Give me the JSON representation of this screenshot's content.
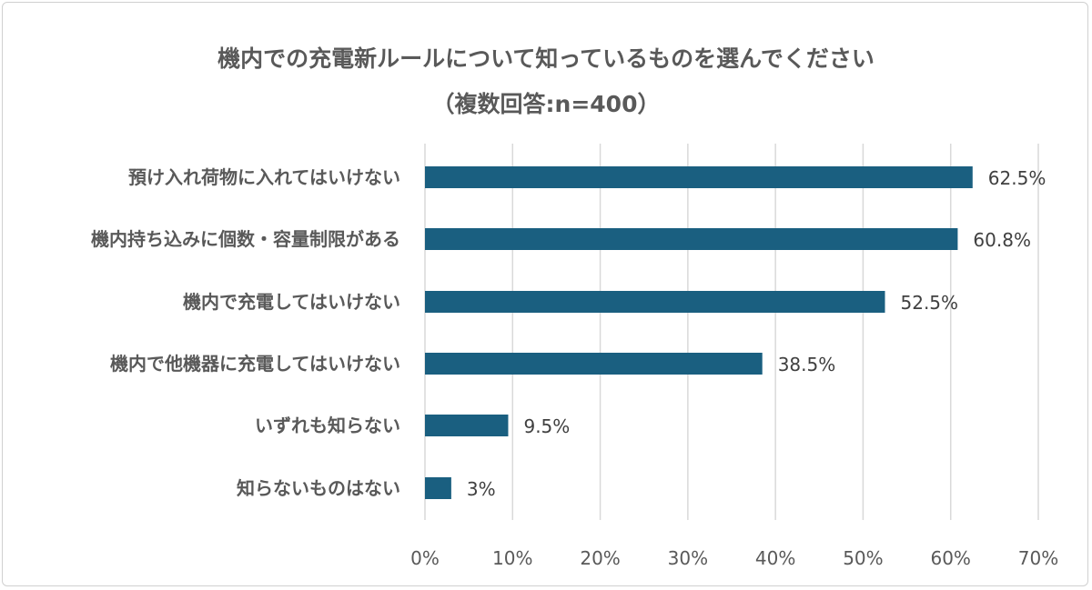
{
  "chart_data": {
    "type": "bar",
    "orientation": "horizontal",
    "title": "機内での充電新ルールについて知っているものを選んでください",
    "subtitle": "（複数回答:n=400）",
    "categories": [
      "預け入れ荷物に入れてはいけない",
      "機内持ち込みに個数・容量制限がある",
      "機内で充電してはいけない",
      "機内で他機器に充電してはいけない",
      "いずれも知らない",
      "知らないものはない"
    ],
    "values": [
      62.5,
      60.8,
      52.5,
      38.5,
      9.5,
      3
    ],
    "data_labels": [
      "62.5%",
      "60.8%",
      "52.5%",
      "38.5%",
      "9.5%",
      "3%"
    ],
    "xlim": [
      0,
      70
    ],
    "xticks": [
      "0%",
      "10%",
      "20%",
      "30%",
      "40%",
      "50%",
      "60%",
      "70%"
    ],
    "grid": true,
    "bar_color": "#1a5f80"
  }
}
